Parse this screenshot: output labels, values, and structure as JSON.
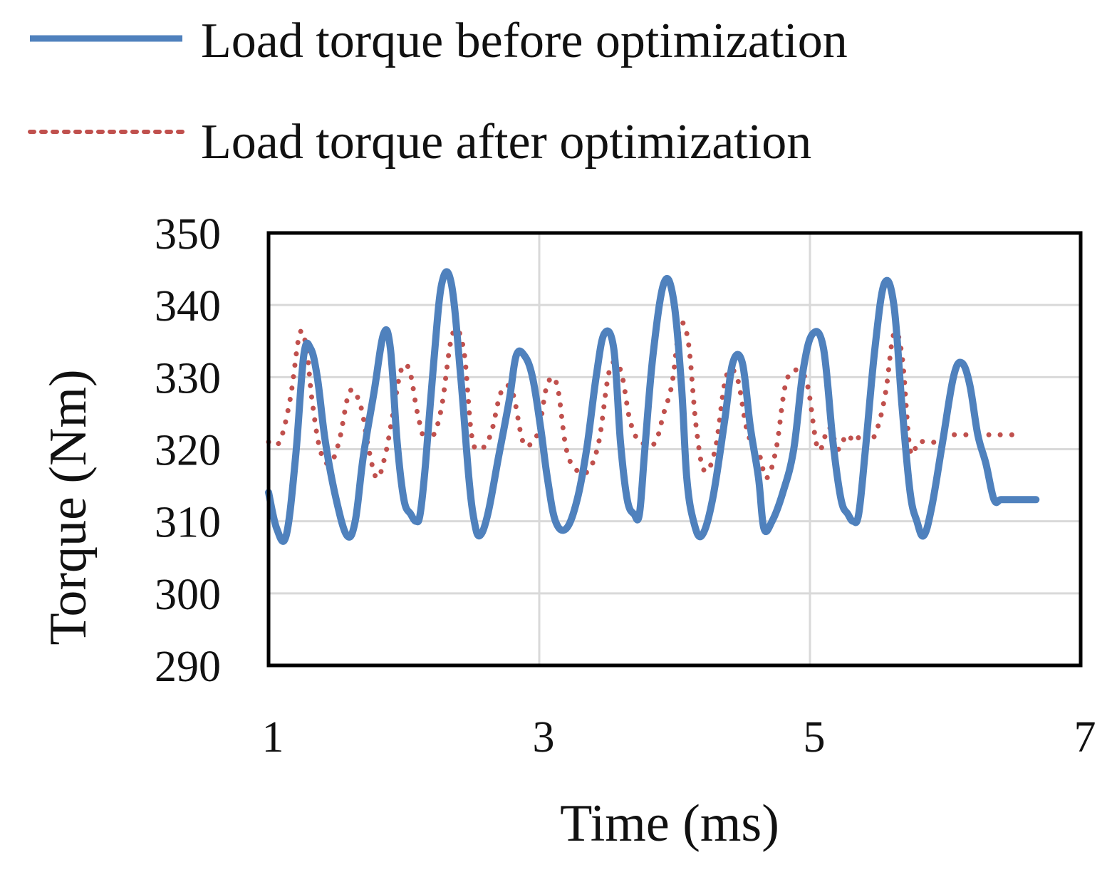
{
  "chart_data": {
    "type": "line",
    "title": "",
    "xlabel": "Time (ms)",
    "ylabel": "Torque (Nm)",
    "xlim": [
      1,
      7
    ],
    "ylim": [
      290,
      350
    ],
    "x_ticks": [
      1,
      3,
      5,
      7
    ],
    "x_tick_labels": [
      "1",
      "3",
      "5",
      "7"
    ],
    "y_ticks": [
      290,
      300,
      310,
      320,
      330,
      340,
      350
    ],
    "y_tick_labels": [
      "290",
      "300",
      "310",
      "320",
      "330",
      "340",
      "350"
    ],
    "grid": true,
    "legend_position": "top-left",
    "series": [
      {
        "name": "Load torque before optimization",
        "color": "#4F81BD",
        "style": "solid",
        "x": [
          1.0,
          1.06,
          1.13,
          1.2,
          1.26,
          1.31,
          1.36,
          1.42,
          1.5,
          1.58,
          1.64,
          1.7,
          1.78,
          1.85,
          1.9,
          1.95,
          2.0,
          2.05,
          2.09,
          2.12,
          2.16,
          2.22,
          2.28,
          2.35,
          2.42,
          2.48,
          2.52,
          2.56,
          2.62,
          2.7,
          2.78,
          2.83,
          2.89,
          2.95,
          3.01,
          3.06,
          3.12,
          3.2,
          3.28,
          3.35,
          3.42,
          3.48,
          3.55,
          3.6,
          3.65,
          3.7,
          3.74,
          3.78,
          3.84,
          3.92,
          3.99,
          4.05,
          4.09,
          4.14,
          4.2,
          4.28,
          4.37,
          4.43,
          4.5,
          4.56,
          4.62,
          4.66,
          4.72,
          4.8,
          4.88,
          4.95,
          5.02,
          5.1,
          5.17,
          5.23,
          5.28,
          5.32,
          5.36,
          5.41,
          5.48,
          5.55,
          5.62,
          5.68,
          5.74,
          5.79,
          5.84,
          5.9,
          5.98,
          6.06,
          6.12,
          6.18,
          6.24,
          6.3,
          6.36,
          6.41,
          6.48,
          6.55,
          6.62,
          6.67
        ],
        "y": [
          314,
          309,
          308,
          319,
          333,
          334,
          330,
          321,
          313,
          308,
          310,
          319,
          328,
          336,
          334,
          321,
          313,
          311,
          310,
          311,
          318,
          332,
          343,
          343,
          330,
          316,
          310,
          308,
          311,
          319,
          327,
          333,
          333,
          330,
          323,
          316,
          310,
          309,
          313,
          320,
          330,
          336,
          334,
          321,
          313,
          311,
          311,
          320,
          333,
          343,
          341,
          329,
          316,
          310,
          308,
          313,
          324,
          332,
          332,
          323,
          316,
          309,
          310,
          314,
          320,
          331,
          336,
          334,
          321,
          313,
          311,
          310,
          311,
          320,
          334,
          343,
          340,
          326,
          314,
          310,
          308,
          312,
          321,
          330,
          332,
          329,
          322,
          318,
          313,
          313,
          313,
          313,
          313,
          313
        ]
      },
      {
        "name": "Load torque after optimization",
        "color": "#C0504D",
        "style": "dotted",
        "x": [
          1.0,
          1.08,
          1.16,
          1.23,
          1.28,
          1.32,
          1.38,
          1.45,
          1.52,
          1.6,
          1.68,
          1.74,
          1.8,
          1.86,
          1.92,
          1.98,
          2.04,
          2.1,
          2.16,
          2.22,
          2.28,
          2.36,
          2.44,
          2.5,
          2.56,
          2.64,
          2.72,
          2.8,
          2.88,
          2.95,
          3.0,
          3.06,
          3.13,
          3.2,
          3.28,
          3.36,
          3.44,
          3.52,
          3.6,
          3.67,
          3.74,
          3.8,
          3.86,
          3.92,
          3.98,
          4.04,
          4.1,
          4.16,
          4.22,
          4.3,
          4.38,
          4.46,
          4.53,
          4.59,
          4.63,
          4.68,
          4.75,
          4.82,
          4.9,
          4.98,
          5.06,
          5.14,
          5.21,
          5.27,
          5.33,
          5.38,
          5.44,
          5.5,
          5.56,
          5.62,
          5.68,
          5.74,
          5.8,
          5.86,
          5.92,
          6.0,
          6.08,
          6.16,
          6.22,
          6.27,
          6.31,
          6.36,
          6.43,
          6.5
        ],
        "y": [
          321,
          321,
          327,
          336,
          334,
          327,
          320,
          318,
          321,
          328,
          326,
          320,
          316,
          319,
          325,
          331,
          331,
          325,
          321,
          322,
          326,
          336,
          334,
          322,
          320,
          322,
          328,
          328,
          321,
          321,
          323,
          329,
          329,
          320,
          317,
          317,
          321,
          331,
          331,
          324,
          321,
          321,
          321,
          325,
          329,
          337,
          335,
          323,
          317,
          320,
          330,
          330,
          323,
          320,
          319,
          316,
          320,
          329,
          331,
          329,
          320,
          323,
          320,
          322,
          321,
          322,
          321,
          323,
          328,
          336,
          333,
          320,
          321,
          321,
          321,
          322,
          322,
          322,
          322,
          322,
          322,
          322,
          322,
          322
        ]
      }
    ]
  }
}
